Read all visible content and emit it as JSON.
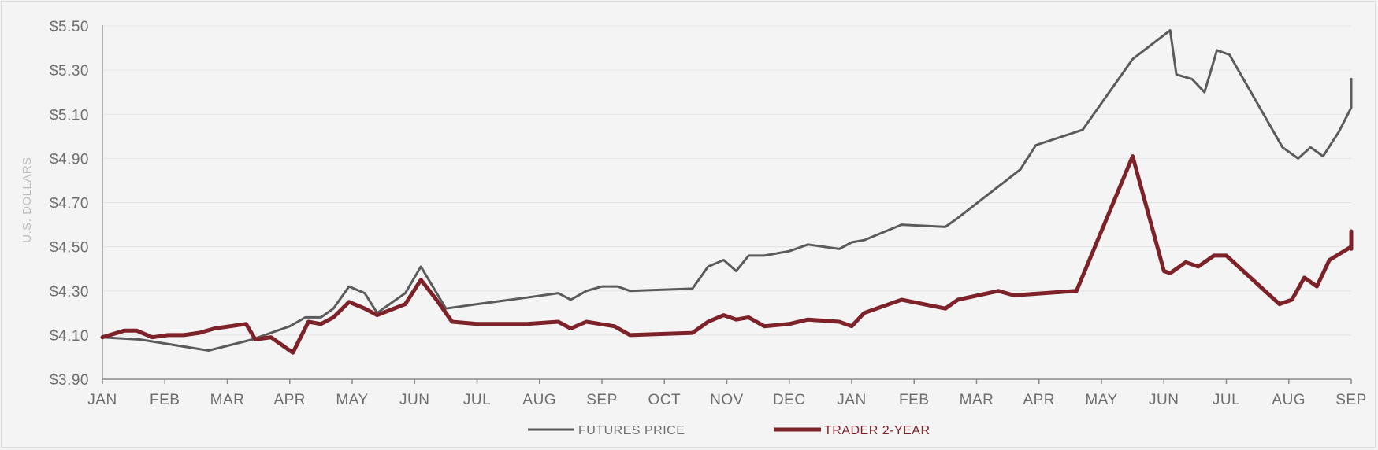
{
  "chart_data": {
    "type": "line",
    "ylabel": "U.S. DOLLARS",
    "ylim": [
      3.9,
      5.5
    ],
    "yticks": [
      3.9,
      4.1,
      4.3,
      4.5,
      4.7,
      4.9,
      5.1,
      5.3,
      5.5
    ],
    "ytick_labels": [
      "$3.90",
      "$4.10",
      "$4.30",
      "$4.50",
      "$4.70",
      "$4.90",
      "$5.10",
      "$5.30",
      "$5.50"
    ],
    "xlim": [
      0,
      20
    ],
    "x_tick_labels": [
      "JAN",
      "FEB",
      "MAR",
      "APR",
      "MAY",
      "JUN",
      "JUL",
      "AUG",
      "SEP",
      "OCT",
      "NOV",
      "DEC",
      "JAN",
      "FEB",
      "MAR",
      "APR",
      "MAY",
      "JUN",
      "JUL",
      "AUG",
      "SEP"
    ],
    "grid": true,
    "legend_position": "bottom-center",
    "colors": {
      "futures": "#5b5b5b",
      "trader": "#7e2229"
    },
    "series": [
      {
        "name": "FUTURES PRICE",
        "color": "#5b5b5b",
        "points": [
          [
            0,
            4.09
          ],
          [
            0.6,
            4.08
          ],
          [
            1.7,
            4.03
          ],
          [
            2.4,
            4.08
          ],
          [
            3.0,
            4.14
          ],
          [
            3.25,
            4.18
          ],
          [
            3.5,
            4.18
          ],
          [
            3.7,
            4.22
          ],
          [
            3.95,
            4.32
          ],
          [
            4.2,
            4.29
          ],
          [
            4.4,
            4.2
          ],
          [
            4.6,
            4.24
          ],
          [
            4.85,
            4.29
          ],
          [
            5.1,
            4.41
          ],
          [
            5.5,
            4.22
          ],
          [
            6.0,
            4.24
          ],
          [
            6.8,
            4.27
          ],
          [
            7.3,
            4.29
          ],
          [
            7.5,
            4.26
          ],
          [
            7.75,
            4.3
          ],
          [
            8.0,
            4.32
          ],
          [
            8.25,
            4.32
          ],
          [
            8.45,
            4.3
          ],
          [
            9.45,
            4.31
          ],
          [
            9.7,
            4.41
          ],
          [
            9.95,
            4.44
          ],
          [
            10.15,
            4.39
          ],
          [
            10.35,
            4.46
          ],
          [
            10.6,
            4.46
          ],
          [
            11.0,
            4.48
          ],
          [
            11.3,
            4.51
          ],
          [
            11.8,
            4.49
          ],
          [
            12.0,
            4.52
          ],
          [
            12.2,
            4.53
          ],
          [
            12.8,
            4.6
          ],
          [
            13.5,
            4.59
          ],
          [
            13.7,
            4.63
          ],
          [
            14.7,
            4.85
          ],
          [
            14.95,
            4.96
          ],
          [
            15.7,
            5.03
          ],
          [
            16.5,
            5.35
          ],
          [
            17.1,
            5.48
          ],
          [
            17.2,
            5.28
          ],
          [
            17.45,
            5.26
          ],
          [
            17.65,
            5.2
          ],
          [
            17.85,
            5.39
          ],
          [
            18.05,
            5.37
          ],
          [
            18.9,
            4.95
          ],
          [
            19.15,
            4.9
          ],
          [
            19.35,
            4.95
          ],
          [
            19.55,
            4.91
          ],
          [
            19.8,
            5.02
          ],
          [
            20.2,
            5.13
          ],
          [
            20.4,
            5.15
          ],
          [
            21.0,
            5.26
          ]
        ]
      },
      {
        "name": "TRADER 2-YEAR",
        "color": "#7e2229",
        "points": [
          [
            0,
            4.09
          ],
          [
            0.35,
            4.12
          ],
          [
            0.55,
            4.12
          ],
          [
            0.8,
            4.09
          ],
          [
            1.05,
            4.1
          ],
          [
            1.3,
            4.1
          ],
          [
            1.55,
            4.11
          ],
          [
            1.8,
            4.13
          ],
          [
            2.3,
            4.15
          ],
          [
            2.45,
            4.08
          ],
          [
            2.7,
            4.09
          ],
          [
            3.05,
            4.02
          ],
          [
            3.3,
            4.16
          ],
          [
            3.5,
            4.15
          ],
          [
            3.7,
            4.18
          ],
          [
            3.95,
            4.25
          ],
          [
            4.2,
            4.22
          ],
          [
            4.4,
            4.19
          ],
          [
            4.85,
            4.24
          ],
          [
            5.1,
            4.35
          ],
          [
            5.35,
            4.26
          ],
          [
            5.6,
            4.16
          ],
          [
            6.0,
            4.15
          ],
          [
            6.8,
            4.15
          ],
          [
            7.3,
            4.16
          ],
          [
            7.5,
            4.13
          ],
          [
            7.75,
            4.16
          ],
          [
            8.2,
            4.14
          ],
          [
            8.45,
            4.1
          ],
          [
            9.45,
            4.11
          ],
          [
            9.7,
            4.16
          ],
          [
            9.95,
            4.19
          ],
          [
            10.15,
            4.17
          ],
          [
            10.35,
            4.18
          ],
          [
            10.6,
            4.14
          ],
          [
            11.0,
            4.15
          ],
          [
            11.3,
            4.17
          ],
          [
            11.8,
            4.16
          ],
          [
            12.0,
            4.14
          ],
          [
            12.2,
            4.2
          ],
          [
            12.8,
            4.26
          ],
          [
            13.5,
            4.22
          ],
          [
            13.7,
            4.26
          ],
          [
            14.35,
            4.3
          ],
          [
            14.6,
            4.28
          ],
          [
            15.6,
            4.3
          ],
          [
            16.5,
            4.91
          ],
          [
            17.0,
            4.39
          ],
          [
            17.1,
            4.38
          ],
          [
            17.35,
            4.43
          ],
          [
            17.55,
            4.41
          ],
          [
            17.8,
            4.46
          ],
          [
            18.0,
            4.46
          ],
          [
            18.85,
            4.24
          ],
          [
            19.05,
            4.26
          ],
          [
            19.25,
            4.36
          ],
          [
            19.45,
            4.32
          ],
          [
            19.65,
            4.44
          ],
          [
            20.2,
            4.5
          ],
          [
            20.4,
            4.49
          ],
          [
            21.0,
            4.57
          ]
        ]
      }
    ]
  }
}
